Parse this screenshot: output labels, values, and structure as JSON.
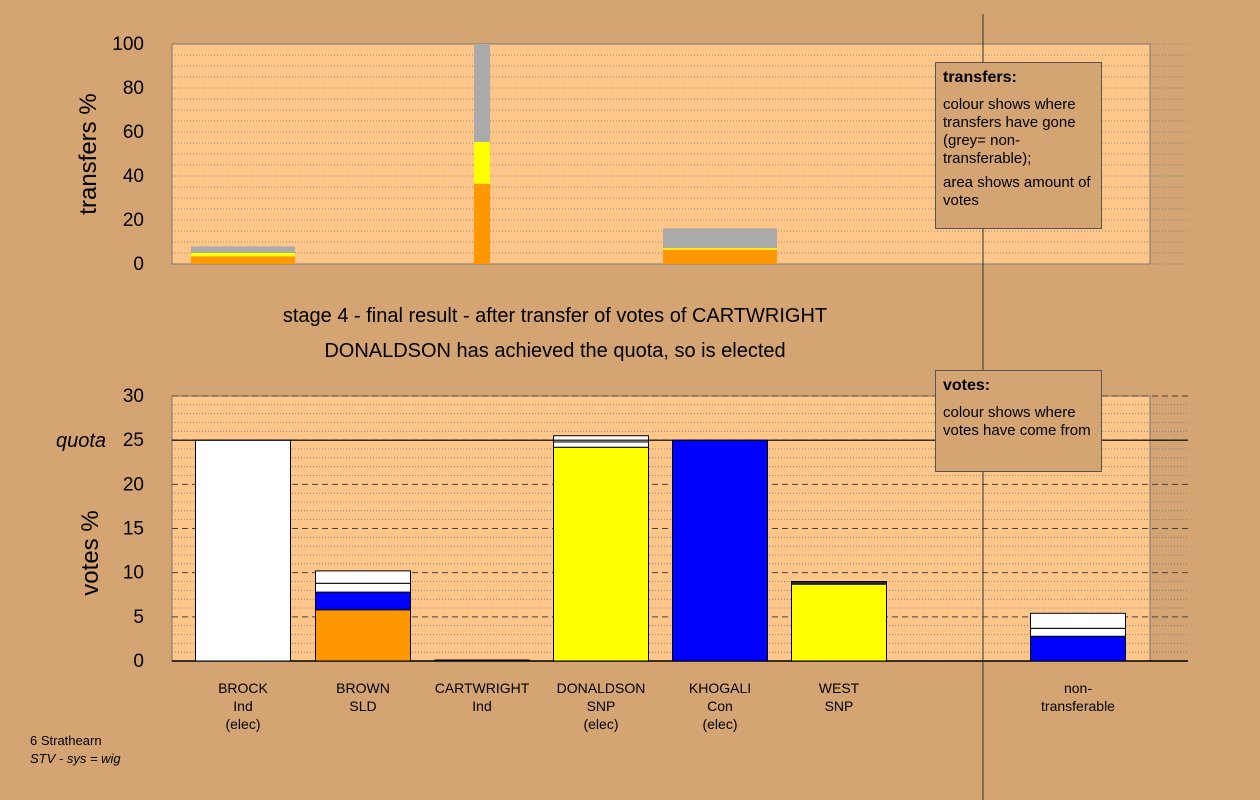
{
  "chart_data": [
    {
      "type": "bar",
      "ylabel": "transfers %",
      "ylim": [
        0,
        100
      ],
      "yticks": [
        0,
        20,
        40,
        60,
        80,
        100
      ],
      "grid": "dotted",
      "categories": [
        "BROCK",
        "BROWN",
        "CARTWRIGHT",
        "DONALDSON",
        "KHOGALI",
        "WEST"
      ],
      "series": [
        {
          "color": "#ff9800",
          "values": [
            3.5,
            0,
            36.5,
            0,
            6.5,
            0
          ]
        },
        {
          "color": "#ffff00",
          "values": [
            1.5,
            0,
            19,
            0,
            0.7,
            0
          ]
        },
        {
          "color": "#aaaaaa",
          "values": [
            3,
            0,
            44.5,
            0,
            9,
            0
          ]
        }
      ]
    },
    {
      "type": "bar",
      "ylabel": "votes %",
      "ylim": [
        0,
        30
      ],
      "yticks": [
        0,
        5,
        10,
        15,
        20,
        25,
        30
      ],
      "grid": "dashed",
      "quota": 25,
      "quota_label": "quota",
      "categories": [
        {
          "name": "BROCK",
          "party": "Ind",
          "status": "(elec)"
        },
        {
          "name": "BROWN",
          "party": "SLD",
          "status": ""
        },
        {
          "name": "CARTWRIGHT",
          "party": "Ind",
          "status": ""
        },
        {
          "name": "DONALDSON",
          "party": "SNP",
          "status": "(elec)"
        },
        {
          "name": "KHOGALI",
          "party": "Con",
          "status": "(elec)"
        },
        {
          "name": "WEST",
          "party": "SNP",
          "status": ""
        },
        {
          "name": "non-",
          "party": "transferable",
          "status": ""
        }
      ],
      "stacks": [
        [
          {
            "color": "#ffffff",
            "value": 25
          }
        ],
        [
          {
            "color": "#ff9800",
            "value": 5.8
          },
          {
            "color": "#0000ff",
            "value": 2.0
          },
          {
            "color": "#ffffff",
            "value": 1.0
          },
          {
            "color": "#ffffff",
            "value": 1.4
          }
        ],
        [],
        [
          {
            "color": "#ffff00",
            "value": 24.2
          },
          {
            "color": "#ffffff",
            "value": 0.6
          },
          {
            "color": "#ffffff",
            "value": 0.7
          }
        ],
        [
          {
            "color": "#0000ff",
            "value": 25
          }
        ],
        [
          {
            "color": "#ffff00",
            "value": 8.7
          },
          {
            "color": "#333333",
            "value": 0.3
          }
        ],
        [
          {
            "color": "#0000ff",
            "value": 2.8
          },
          {
            "color": "#ffffff",
            "value": 0.9
          },
          {
            "color": "#ffffff",
            "value": 1.7
          }
        ]
      ]
    }
  ],
  "captions": {
    "stage": "stage 4 - final result - after transfer of votes of CARTWRIGHT",
    "elected": "DONALDSON has achieved the quota, so is elected"
  },
  "legend_transfers": {
    "title": "transfers:",
    "line1": "colour shows where transfers have gone (grey= non-transferable);",
    "line2": "area shows amount of votes"
  },
  "legend_votes": {
    "title": "votes:",
    "line1": "colour shows where votes have come from"
  },
  "footer": {
    "line1": "6 Strathearn",
    "line2": "STV - sys = wig"
  },
  "colors": {
    "background": "#d4a572",
    "plot_area": "#ffc68a",
    "orange": "#ff9800",
    "yellow": "#ffff00",
    "blue": "#0000ff",
    "white": "#ffffff",
    "grey": "#aaaaaa"
  }
}
